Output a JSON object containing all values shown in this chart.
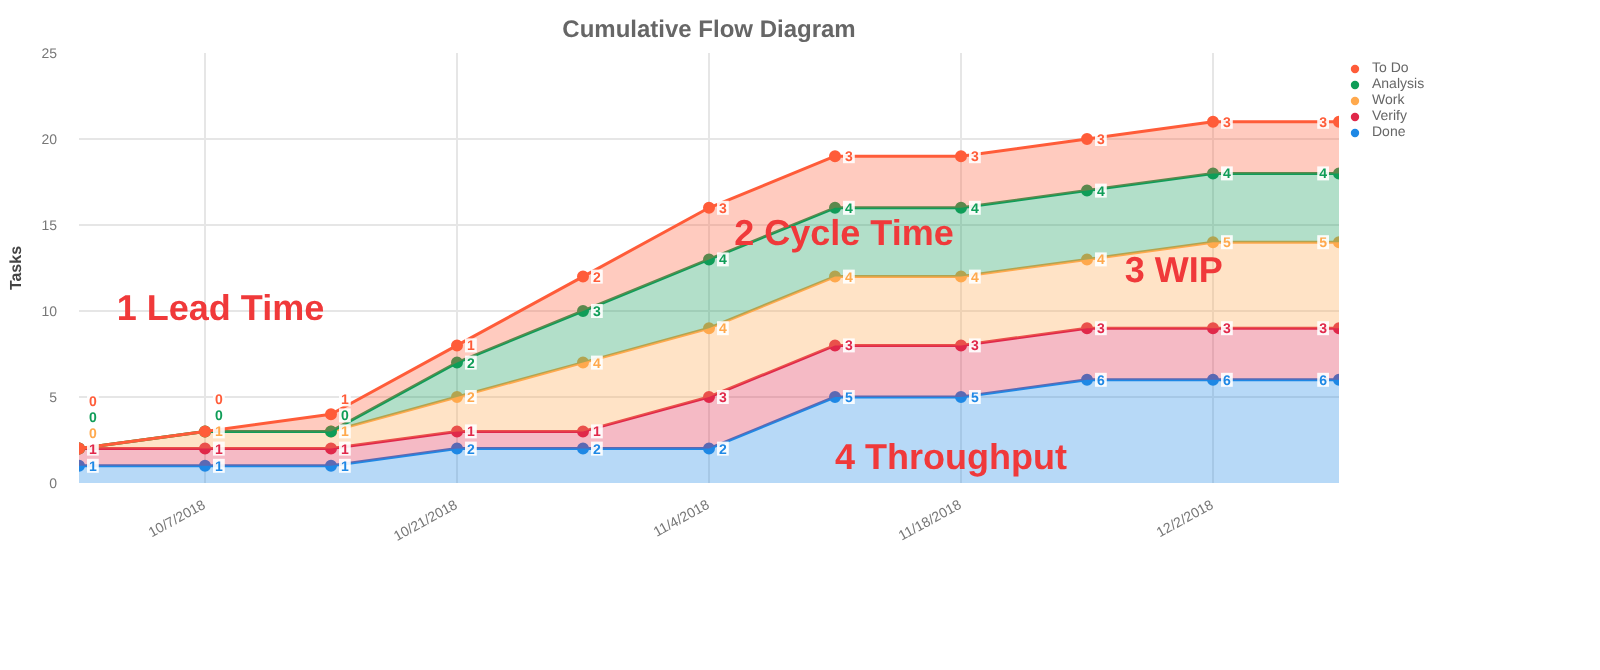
{
  "chart_data": {
    "type": "area",
    "title": "Cumulative Flow Diagram",
    "ylabel": "Tasks",
    "stacked": true,
    "x": [
      "2018-09-30",
      "2018-10-07",
      "2018-10-14",
      "2018-10-21",
      "2018-10-28",
      "2018-11-04",
      "2018-11-11",
      "2018-11-18",
      "2018-11-25",
      "2018-12-02",
      "2018-12-09"
    ],
    "series": [
      {
        "name": "Done",
        "color": "#1e88e5",
        "values": [
          1,
          1,
          1,
          2,
          2,
          2,
          5,
          5,
          6,
          6,
          6
        ]
      },
      {
        "name": "Verify",
        "color": "#e0284a",
        "values": [
          1,
          1,
          1,
          1,
          1,
          3,
          3,
          3,
          3,
          3,
          3
        ]
      },
      {
        "name": "Work",
        "color": "#ffa94d",
        "values": [
          0,
          1,
          1,
          2,
          4,
          4,
          4,
          4,
          4,
          5,
          5
        ]
      },
      {
        "name": "Analysis",
        "color": "#0f9d58",
        "values": [
          0,
          0,
          0,
          2,
          3,
          4,
          4,
          4,
          4,
          4,
          4
        ]
      },
      {
        "name": "To Do",
        "color": "#ff5c39",
        "values": [
          0,
          0,
          1,
          1,
          2,
          3,
          3,
          3,
          3,
          3,
          3
        ]
      }
    ],
    "xlim": [
      "2018-09-30",
      "2018-12-09"
    ],
    "xticks": [
      {
        "value": "2018-10-07",
        "label": "10/7/2018"
      },
      {
        "value": "2018-10-21",
        "label": "10/21/2018"
      },
      {
        "value": "2018-11-04",
        "label": "11/4/2018"
      },
      {
        "value": "2018-11-18",
        "label": "11/18/2018"
      },
      {
        "value": "2018-12-02",
        "label": "12/2/2018"
      }
    ],
    "ylim": [
      0,
      25
    ],
    "yticks": [
      0,
      5,
      10,
      15,
      20,
      25
    ],
    "grid": true,
    "legend": "top right",
    "marker": "circle",
    "data_labels": true,
    "annotations": [
      "1 Lead Time",
      "2 Cycle Time",
      "3 WIP",
      "4 Throughput"
    ]
  }
}
